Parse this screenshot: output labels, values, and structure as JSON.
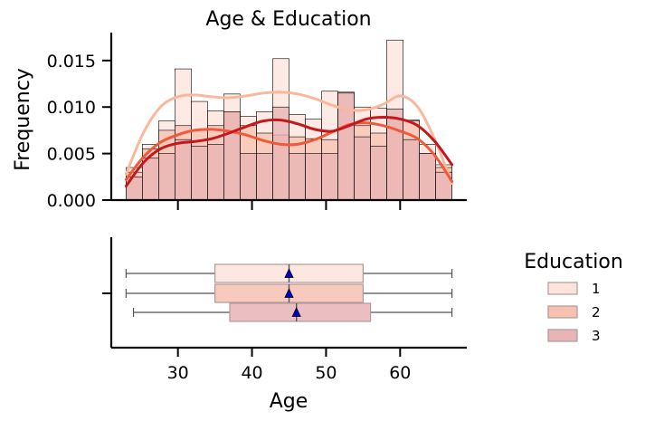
{
  "chart_data": [
    {
      "type": "histogram",
      "title": "Age & Education",
      "xlabel": "",
      "ylabel": "Frequency",
      "xlim": [
        21,
        69
      ],
      "ylim": [
        0,
        0.018
      ],
      "bin_edges": [
        23,
        25.2,
        27.4,
        29.6,
        31.8,
        34.0,
        36.2,
        38.4,
        40.6,
        42.8,
        45.0,
        47.2,
        49.4,
        51.6,
        53.8,
        56.0,
        58.2,
        60.4,
        62.6,
        64.8,
        67.0
      ],
      "x_ticks": [
        30,
        40,
        50,
        60
      ],
      "y_ticks": [
        {
          "value": 0.0,
          "label": "0.000"
        },
        {
          "value": 0.005,
          "label": "0.005"
        },
        {
          "value": 0.01,
          "label": "0.010"
        },
        {
          "value": 0.015,
          "label": "0.015"
        }
      ],
      "x_tick_labels_visible": false,
      "grid": false,
      "series": [
        {
          "name": "1",
          "color": "#fce4dc",
          "values": [
            0.0035,
            0.006,
            0.0085,
            0.0141,
            0.0106,
            0.0096,
            0.0114,
            0.009,
            0.0095,
            0.0152,
            0.0092,
            0.0087,
            0.0117,
            0.0097,
            0.01,
            0.0099,
            0.0172,
            0.0086,
            0.006,
            0.0038
          ],
          "kde": [
            0.0028,
            0.0072,
            0.01,
            0.0111,
            0.0113,
            0.0111,
            0.011,
            0.0112,
            0.0115,
            0.0116,
            0.0114,
            0.0109,
            0.0102,
            0.0097,
            0.0097,
            0.0103,
            0.0112,
            0.01,
            0.0065,
            0.0018
          ],
          "kde_color": "#f9b89c"
        },
        {
          "name": "2",
          "color": "#f6c1b1",
          "values": [
            0.003,
            0.0055,
            0.0075,
            0.008,
            0.0075,
            0.008,
            0.0095,
            0.008,
            0.0072,
            0.007,
            0.0068,
            0.0066,
            0.0065,
            0.0116,
            0.008,
            0.0072,
            0.0088,
            0.0085,
            0.005,
            0.0035
          ],
          "kde": [
            0.0022,
            0.0046,
            0.0062,
            0.007,
            0.0075,
            0.0076,
            0.0074,
            0.007,
            0.0064,
            0.006,
            0.006,
            0.0065,
            0.0073,
            0.0081,
            0.0083,
            0.008,
            0.0074,
            0.0066,
            0.0048,
            0.002
          ],
          "kde_color": "#f05a3a"
        },
        {
          "name": "3",
          "color": "#e8b4b6",
          "values": [
            0.0025,
            0.0045,
            0.005,
            0.0065,
            0.0058,
            0.006,
            0.0095,
            0.005,
            0.005,
            0.01,
            0.005,
            0.005,
            0.005,
            0.0115,
            0.0068,
            0.0058,
            0.0098,
            0.0065,
            0.005,
            0.003
          ],
          "kde": [
            0.0015,
            0.004,
            0.0055,
            0.0061,
            0.0063,
            0.0066,
            0.0072,
            0.0079,
            0.0085,
            0.0086,
            0.0082,
            0.0076,
            0.0074,
            0.008,
            0.0087,
            0.0089,
            0.0087,
            0.008,
            0.0063,
            0.0038
          ],
          "kde_color": "#c6171d"
        }
      ]
    },
    {
      "type": "boxplot",
      "title": "",
      "xlabel": "Age",
      "ylabel": "",
      "xlim": [
        21,
        69
      ],
      "x_ticks": [
        {
          "value": 30,
          "label": "30"
        },
        {
          "value": 40,
          "label": "40"
        },
        {
          "value": 50,
          "label": "50"
        },
        {
          "value": 60,
          "label": "60"
        }
      ],
      "series": [
        {
          "name": "1",
          "color": "#fce4dc",
          "min": 23,
          "q1": 35,
          "median": 45,
          "q3": 55,
          "max": 67,
          "mean": 45
        },
        {
          "name": "2",
          "color": "#f6c1b1",
          "min": 23,
          "q1": 35,
          "median": 45,
          "q3": 55,
          "max": 67,
          "mean": 45
        },
        {
          "name": "3",
          "color": "#e8b4b6",
          "min": 24,
          "q1": 37,
          "median": 46,
          "q3": 56,
          "max": 67,
          "mean": 46
        }
      ],
      "mean_marker": {
        "shape": "triangle",
        "color": "#0000cc"
      }
    }
  ],
  "legend": {
    "title": "Education",
    "position": "right",
    "items": [
      {
        "label": "1",
        "color": "#fce4dc"
      },
      {
        "label": "2",
        "color": "#f6c1b1"
      },
      {
        "label": "3",
        "color": "#e8b4b6"
      }
    ]
  }
}
